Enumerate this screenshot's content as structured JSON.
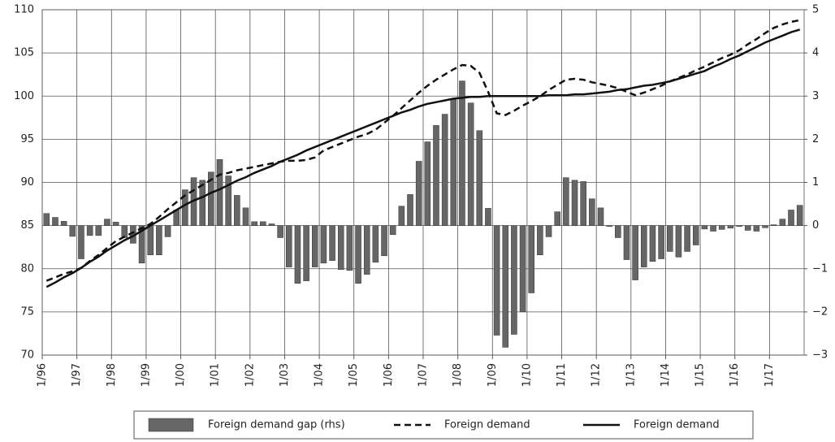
{
  "chart_data": {
    "type": "bar_line",
    "categories": [
      "1/96",
      null,
      null,
      null,
      "1/97",
      null,
      null,
      null,
      "1/98",
      null,
      null,
      null,
      "1/99",
      null,
      null,
      null,
      "1/00",
      null,
      null,
      null,
      "1/01",
      null,
      null,
      null,
      "1/02",
      null,
      null,
      null,
      "1/03",
      null,
      null,
      null,
      "1/04",
      null,
      null,
      null,
      "1/05",
      null,
      null,
      null,
      "1/06",
      null,
      null,
      null,
      "1/07",
      null,
      null,
      null,
      "1/08",
      null,
      null,
      null,
      "1/09",
      null,
      null,
      null,
      "1/10",
      null,
      null,
      null,
      "1/11",
      null,
      null,
      null,
      "1/12",
      null,
      null,
      null,
      "1/13",
      null,
      null,
      null,
      "1/14",
      null,
      null,
      null,
      "1/15",
      null,
      null,
      null,
      "1/16",
      null,
      null,
      null,
      "1/17",
      null,
      null,
      null
    ],
    "series": [
      {
        "name": "Foreign demand gap (rhs)",
        "type": "bar",
        "axis": "y2",
        "color": "#666666",
        "values": [
          0.28,
          0.19,
          0.1,
          -0.25,
          -0.77,
          -0.23,
          -0.23,
          0.15,
          0.08,
          -0.28,
          -0.41,
          -0.87,
          -0.68,
          -0.68,
          -0.26,
          0.36,
          0.83,
          1.11,
          1.05,
          1.24,
          1.53,
          1.15,
          0.7,
          0.41,
          0.09,
          0.09,
          0.04,
          -0.28,
          -0.96,
          -1.34,
          -1.28,
          -0.96,
          -0.87,
          -0.81,
          -1.02,
          -1.04,
          -1.34,
          -1.13,
          -0.85,
          -0.7,
          -0.21,
          0.45,
          0.72,
          1.49,
          1.94,
          2.32,
          2.58,
          2.92,
          3.35,
          2.84,
          2.2,
          0.4,
          -2.54,
          -2.82,
          -2.52,
          -2.0,
          -1.56,
          -0.68,
          -0.26,
          0.32,
          1.11,
          1.05,
          1.02,
          0.62,
          0.41,
          -0.02,
          -0.28,
          -0.79,
          -1.26,
          -0.96,
          -0.83,
          -0.77,
          -0.6,
          -0.73,
          -0.6,
          -0.45,
          -0.08,
          -0.13,
          -0.09,
          -0.06,
          -0.02,
          -0.11,
          -0.13,
          -0.05,
          0.02,
          0.15,
          0.36,
          0.47
        ]
      },
      {
        "name": "Foreign demand",
        "type": "line",
        "line_style": "dashed",
        "color": "#111111",
        "values": [
          78.6,
          79.0,
          79.4,
          79.7,
          80.1,
          80.9,
          81.6,
          82.4,
          83.2,
          83.7,
          84.2,
          84.7,
          85.2,
          86.0,
          86.9,
          87.7,
          88.5,
          89.1,
          89.7,
          90.3,
          90.9,
          91.1,
          91.4,
          91.6,
          91.8,
          92.0,
          92.2,
          92.4,
          92.5,
          92.5,
          92.6,
          92.9,
          93.7,
          94.1,
          94.5,
          94.9,
          95.3,
          95.6,
          96.1,
          96.9,
          97.7,
          98.6,
          99.5,
          100.4,
          101.2,
          101.9,
          102.5,
          103.1,
          103.6,
          103.5,
          102.7,
          100.5,
          98.0,
          97.8,
          98.3,
          98.9,
          99.4,
          100.0,
          100.7,
          101.3,
          101.9,
          102.0,
          101.9,
          101.6,
          101.4,
          101.2,
          100.9,
          100.5,
          100.1,
          100.4,
          100.8,
          101.2,
          101.7,
          102.1,
          102.5,
          103.0,
          103.4,
          103.9,
          104.4,
          104.8,
          105.3,
          106.0,
          106.6,
          107.3,
          107.9,
          108.3,
          108.6,
          108.8
        ]
      },
      {
        "name": "Foreign demand",
        "type": "line",
        "line_style": "solid",
        "color": "#111111",
        "values": [
          77.9,
          78.4,
          79.0,
          79.5,
          80.1,
          80.8,
          81.4,
          82.1,
          82.7,
          83.3,
          83.8,
          84.4,
          85.0,
          85.6,
          86.2,
          86.8,
          87.4,
          87.9,
          88.3,
          88.8,
          89.2,
          89.7,
          90.2,
          90.6,
          91.1,
          91.5,
          91.9,
          92.4,
          92.8,
          93.2,
          93.7,
          94.1,
          94.5,
          94.9,
          95.3,
          95.7,
          96.1,
          96.5,
          96.9,
          97.3,
          97.7,
          98.1,
          98.4,
          98.8,
          99.1,
          99.3,
          99.5,
          99.7,
          99.8,
          99.9,
          99.9,
          100.0,
          100.0,
          100.0,
          100.0,
          100.0,
          100.0,
          100.0,
          100.1,
          100.1,
          100.1,
          100.2,
          100.2,
          100.3,
          100.4,
          100.5,
          100.7,
          100.8,
          101.0,
          101.2,
          101.3,
          101.5,
          101.7,
          102.0,
          102.3,
          102.6,
          102.9,
          103.4,
          103.8,
          104.3,
          104.7,
          105.2,
          105.7,
          106.2,
          106.6,
          107.0,
          107.4,
          107.7
        ]
      }
    ],
    "ylim": [
      70,
      110
    ],
    "yticks": [
      70,
      75,
      80,
      85,
      90,
      95,
      100,
      105,
      110
    ],
    "y2lim": [
      -3,
      5
    ],
    "y2ticks": [
      {
        "value": -3,
        "label": "−3"
      },
      {
        "value": -2,
        "label": "−2"
      },
      {
        "value": -1,
        "label": "−1"
      },
      0,
      1,
      2,
      3,
      4,
      5
    ],
    "grid": true,
    "legend": "bottom"
  }
}
